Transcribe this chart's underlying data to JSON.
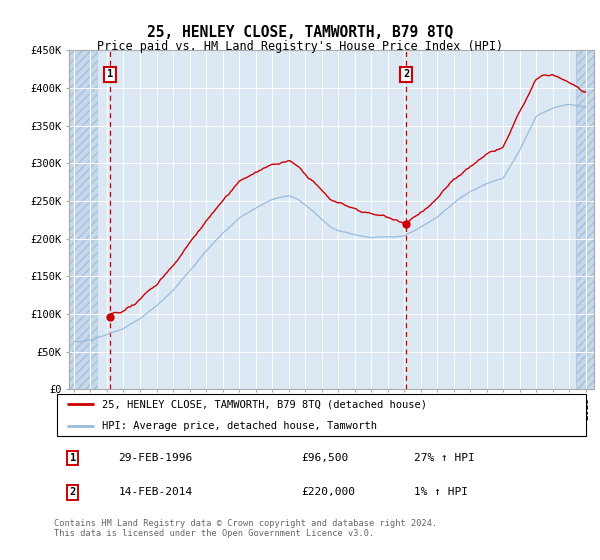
{
  "title": "25, HENLEY CLOSE, TAMWORTH, B79 8TQ",
  "subtitle": "Price paid vs. HM Land Registry's House Price Index (HPI)",
  "ylim": [
    0,
    450000
  ],
  "yticks": [
    0,
    50000,
    100000,
    150000,
    200000,
    250000,
    300000,
    350000,
    400000,
    450000
  ],
  "ytick_labels": [
    "£0",
    "£50K",
    "£100K",
    "£150K",
    "£200K",
    "£250K",
    "£300K",
    "£350K",
    "£400K",
    "£450K"
  ],
  "plot_bg_color": "#dce9f5",
  "line1_color": "#cc0000",
  "line2_color": "#99bbdd",
  "legend1": "25, HENLEY CLOSE, TAMWORTH, B79 8TQ (detached house)",
  "legend2": "HPI: Average price, detached house, Tamworth",
  "footer": "Contains HM Land Registry data © Crown copyright and database right 2024.\nThis data is licensed under the Open Government Licence v3.0.",
  "sale1_x": 1996.17,
  "sale1_y": 96500,
  "sale2_x": 2014.12,
  "sale2_y": 220000,
  "hatch_left_end": 1995.4,
  "hatch_right_start": 2024.4,
  "xlim_left": 1993.7,
  "xlim_right": 2025.5
}
